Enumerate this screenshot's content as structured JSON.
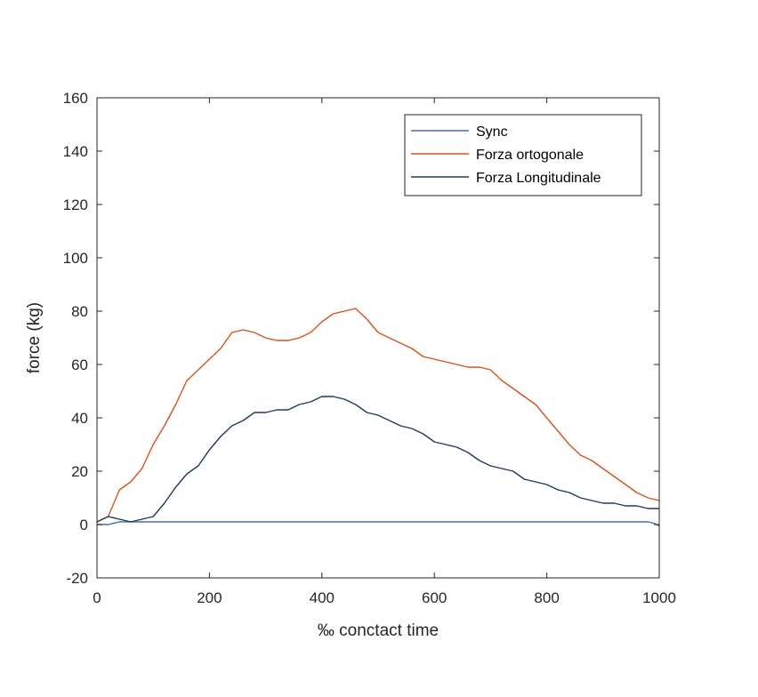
{
  "chart_data": {
    "type": "line",
    "xlabel": "‰ conctact time",
    "ylabel": "force (kg)",
    "xlim": [
      0,
      1000
    ],
    "ylim": [
      -20,
      160
    ],
    "xticks": [
      0,
      200,
      400,
      600,
      800,
      1000
    ],
    "yticks": [
      -20,
      0,
      20,
      40,
      60,
      80,
      100,
      120,
      140,
      160
    ],
    "grid": false,
    "legend_position": "top-right",
    "series": [
      {
        "name": "Sync",
        "color": "#4a6fa5",
        "x": [
          0,
          20,
          40,
          60,
          80,
          100,
          200,
          400,
          600,
          800,
          980,
          990,
          1000
        ],
        "y": [
          0,
          0,
          1,
          1,
          1,
          1,
          1,
          1,
          1,
          1,
          1,
          0.5,
          -0.5
        ]
      },
      {
        "name": "Forza ortogonale",
        "color": "#d95319",
        "x": [
          0,
          20,
          40,
          60,
          80,
          100,
          120,
          140,
          160,
          180,
          200,
          220,
          240,
          260,
          280,
          300,
          320,
          340,
          360,
          380,
          400,
          420,
          440,
          460,
          480,
          500,
          520,
          540,
          560,
          580,
          600,
          620,
          640,
          660,
          680,
          700,
          720,
          740,
          760,
          780,
          800,
          820,
          840,
          860,
          880,
          900,
          920,
          940,
          960,
          980,
          1000
        ],
        "y": [
          1,
          3,
          13,
          16,
          21,
          30,
          37,
          45,
          54,
          58,
          62,
          66,
          72,
          73,
          72,
          70,
          69,
          69,
          70,
          72,
          76,
          79,
          80,
          81,
          77,
          72,
          70,
          68,
          66,
          63,
          62,
          61,
          60,
          59,
          59,
          58,
          54,
          51,
          48,
          45,
          40,
          35,
          30,
          26,
          24,
          21,
          18,
          15,
          12,
          10,
          9
        ]
      },
      {
        "name": "Forza Longitudinale",
        "color": "#1f3a5f",
        "x": [
          0,
          20,
          40,
          60,
          80,
          100,
          120,
          140,
          160,
          180,
          200,
          220,
          240,
          260,
          280,
          300,
          320,
          340,
          360,
          380,
          400,
          420,
          440,
          460,
          480,
          500,
          520,
          540,
          560,
          580,
          600,
          620,
          640,
          660,
          680,
          700,
          720,
          740,
          760,
          780,
          800,
          820,
          840,
          860,
          880,
          900,
          920,
          940,
          960,
          980,
          1000
        ],
        "y": [
          1,
          3,
          2,
          1,
          2,
          3,
          8,
          14,
          19,
          22,
          28,
          33,
          37,
          39,
          42,
          42,
          43,
          43,
          45,
          46,
          48,
          48,
          47,
          45,
          42,
          41,
          39,
          37,
          36,
          34,
          31,
          30,
          29,
          27,
          24,
          22,
          21,
          20,
          17,
          16,
          15,
          13,
          12,
          10,
          9,
          8,
          8,
          7,
          7,
          6,
          6
        ]
      }
    ]
  }
}
